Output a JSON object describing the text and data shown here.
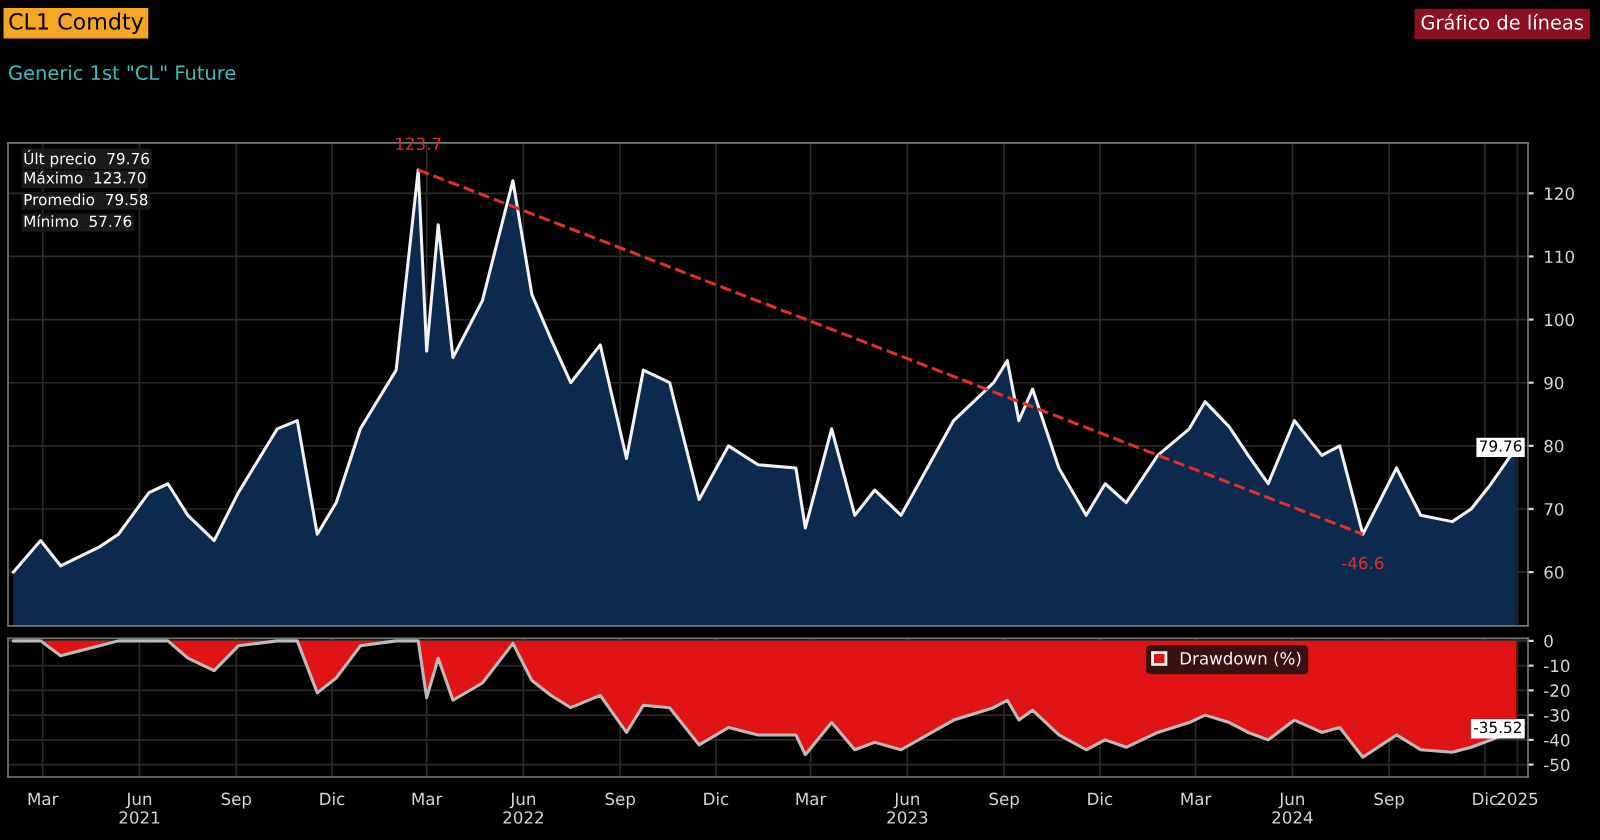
{
  "chart_data": [
    {
      "type": "area",
      "title": "CL1 Comdty",
      "subtitle": "Generic 1st \"CL\" Future",
      "annotations": [
        "Gráfico de líneas",
        "Últ precio  79.76",
        "Máximo  123.70",
        "Promedio  79.58",
        "Mínimo  57.76",
        {
          "text": "123.7",
          "x": "2022-03-07",
          "y": 123.7
        },
        {
          "text": "-46.6",
          "x": "2024-08-21",
          "y": 66
        },
        {
          "text": "79.76",
          "x": "2025-01-14",
          "y": 79.76
        }
      ],
      "series": [
        {
          "color": "#0c2a4e",
          "x": [
            "2021-02-15",
            "2021-03-13",
            "2021-04-01",
            "2021-05-08",
            "2021-05-26",
            "2021-06-24",
            "2021-07-12",
            "2021-07-31",
            "2021-08-25",
            "2021-09-17",
            "2021-10-24",
            "2021-11-12",
            "2021-12-01",
            "2021-12-19",
            "2022-01-11",
            "2022-02-14",
            "2022-03-07",
            "2022-03-15",
            "2022-03-26",
            "2022-04-09",
            "2022-05-07",
            "2022-06-05",
            "2022-06-23",
            "2022-07-11",
            "2022-07-30",
            "2022-08-27",
            "2022-09-21",
            "2022-10-07",
            "2022-11-01",
            "2022-11-29",
            "2022-12-27",
            "2023-01-24",
            "2023-03-01",
            "2023-03-10",
            "2023-04-04",
            "2023-04-26",
            "2023-05-15",
            "2023-06-09",
            "2023-07-29",
            "2023-09-05",
            "2023-09-18",
            "2023-09-29",
            "2023-10-12",
            "2023-11-06",
            "2023-12-02",
            "2023-12-20",
            "2024-01-09",
            "2024-02-08",
            "2024-03-09",
            "2024-03-24",
            "2024-04-16",
            "2024-05-04",
            "2024-05-23",
            "2024-06-17",
            "2024-07-13",
            "2024-07-30",
            "2024-08-21",
            "2024-09-22",
            "2024-10-15",
            "2024-11-14",
            "2024-12-02",
            "2024-12-21",
            "2025-01-14"
          ],
          "values": [
            60,
            65,
            61,
            64,
            66,
            72.6,
            74,
            69,
            65,
            72.6,
            82.7,
            84,
            66,
            71,
            82.7,
            92,
            123.7,
            95,
            115,
            94,
            103,
            122,
            104,
            97,
            90,
            96,
            78,
            92,
            90,
            71.5,
            80,
            77,
            76.5,
            67,
            82.7,
            69,
            73,
            69,
            84,
            90,
            93.5,
            84,
            89,
            76.5,
            69,
            74,
            71,
            78.5,
            82.7,
            87,
            83,
            78.5,
            74,
            84,
            78.5,
            80,
            66,
            76.5,
            69,
            68,
            70,
            74,
            79.76
          ]
        },
        {
          "type": "line",
          "color": "#e0302a",
          "line_style": "dashed",
          "x": [
            "2022-03-07",
            "2024-08-21"
          ],
          "values": [
            123.7,
            66
          ]
        }
      ],
      "xlim": [
        "2021-02-10",
        "2025-01-25"
      ],
      "ylim": [
        51.5,
        128
      ],
      "yticks": [
        60,
        70,
        80,
        90,
        100,
        110,
        120
      ],
      "tick_labels": "y",
      "grid": true
    },
    {
      "type": "area",
      "legend": "top right",
      "annotations": [
        {
          "text": "-35.52",
          "x": "2025-01-14",
          "y": -35.5
        }
      ],
      "series": [
        {
          "name": "Drawdown (%)",
          "color": "#e01414",
          "x": [
            "2021-02-15",
            "2021-03-13",
            "2021-04-01",
            "2021-05-08",
            "2021-05-26",
            "2021-06-24",
            "2021-07-12",
            "2021-07-31",
            "2021-08-25",
            "2021-09-17",
            "2021-10-24",
            "2021-11-12",
            "2021-12-01",
            "2021-12-19",
            "2022-01-11",
            "2022-02-14",
            "2022-03-07",
            "2022-03-15",
            "2022-03-26",
            "2022-04-09",
            "2022-05-07",
            "2022-06-05",
            "2022-06-23",
            "2022-07-11",
            "2022-07-30",
            "2022-08-27",
            "2022-09-21",
            "2022-10-07",
            "2022-11-01",
            "2022-11-29",
            "2022-12-27",
            "2023-01-24",
            "2023-03-01",
            "2023-03-10",
            "2023-04-04",
            "2023-04-26",
            "2023-05-15",
            "2023-06-09",
            "2023-07-29",
            "2023-09-05",
            "2023-09-18",
            "2023-09-29",
            "2023-10-12",
            "2023-11-06",
            "2023-12-02",
            "2023-12-20",
            "2024-01-09",
            "2024-02-08",
            "2024-03-09",
            "2024-03-24",
            "2024-04-16",
            "2024-05-04",
            "2024-05-23",
            "2024-06-17",
            "2024-07-13",
            "2024-07-30",
            "2024-08-21",
            "2024-09-22",
            "2024-10-15",
            "2024-11-14",
            "2024-12-02",
            "2024-12-21",
            "2025-01-14"
          ],
          "values": [
            0,
            0,
            -6,
            -2,
            0,
            0,
            0,
            -7,
            -12,
            -2,
            0,
            0,
            -21,
            -15,
            -2,
            0,
            0,
            -23,
            -7,
            -24,
            -17,
            -1,
            -16,
            -22,
            -27,
            -22,
            -37,
            -26,
            -27,
            -42,
            -35,
            -38,
            -38,
            -46,
            -33,
            -44,
            -41,
            -44,
            -32,
            -27,
            -24,
            -32,
            -28,
            -38,
            -44,
            -40,
            -43,
            -37,
            -33,
            -30,
            -33,
            -37,
            -40,
            -32,
            -37,
            -35,
            -47,
            -38,
            -44,
            -45,
            -43,
            -40,
            -35.5
          ]
        }
      ],
      "xlim": [
        "2021-02-10",
        "2025-01-25"
      ],
      "xticks": [
        {
          "value": "2021-03-15",
          "label": "Mar"
        },
        {
          "value": "2021-06-15",
          "label": "Jun\n2021"
        },
        {
          "value": "2021-09-15",
          "label": "Sep"
        },
        {
          "value": "2021-12-15",
          "label": "Dic"
        },
        {
          "value": "2022-03-15",
          "label": "Mar"
        },
        {
          "value": "2022-06-15",
          "label": "Jun\n2022"
        },
        {
          "value": "2022-09-15",
          "label": "Sep"
        },
        {
          "value": "2022-12-15",
          "label": "Dic"
        },
        {
          "value": "2023-03-15",
          "label": "Mar"
        },
        {
          "value": "2023-06-15",
          "label": "Jun\n2023"
        },
        {
          "value": "2023-09-15",
          "label": "Sep"
        },
        {
          "value": "2023-12-15",
          "label": "Dic"
        },
        {
          "value": "2024-03-15",
          "label": "Mar"
        },
        {
          "value": "2024-06-15",
          "label": "Jun\n2024"
        },
        {
          "value": "2024-09-15",
          "label": "Sep"
        },
        {
          "value": "2024-12-15",
          "label": "Dic"
        },
        {
          "value": "2025-01-15",
          "label": "2025"
        }
      ],
      "ylim": [
        -55,
        1
      ],
      "yticks": [
        0,
        -10,
        -20,
        -30,
        -40,
        -50
      ],
      "grid": true
    }
  ]
}
